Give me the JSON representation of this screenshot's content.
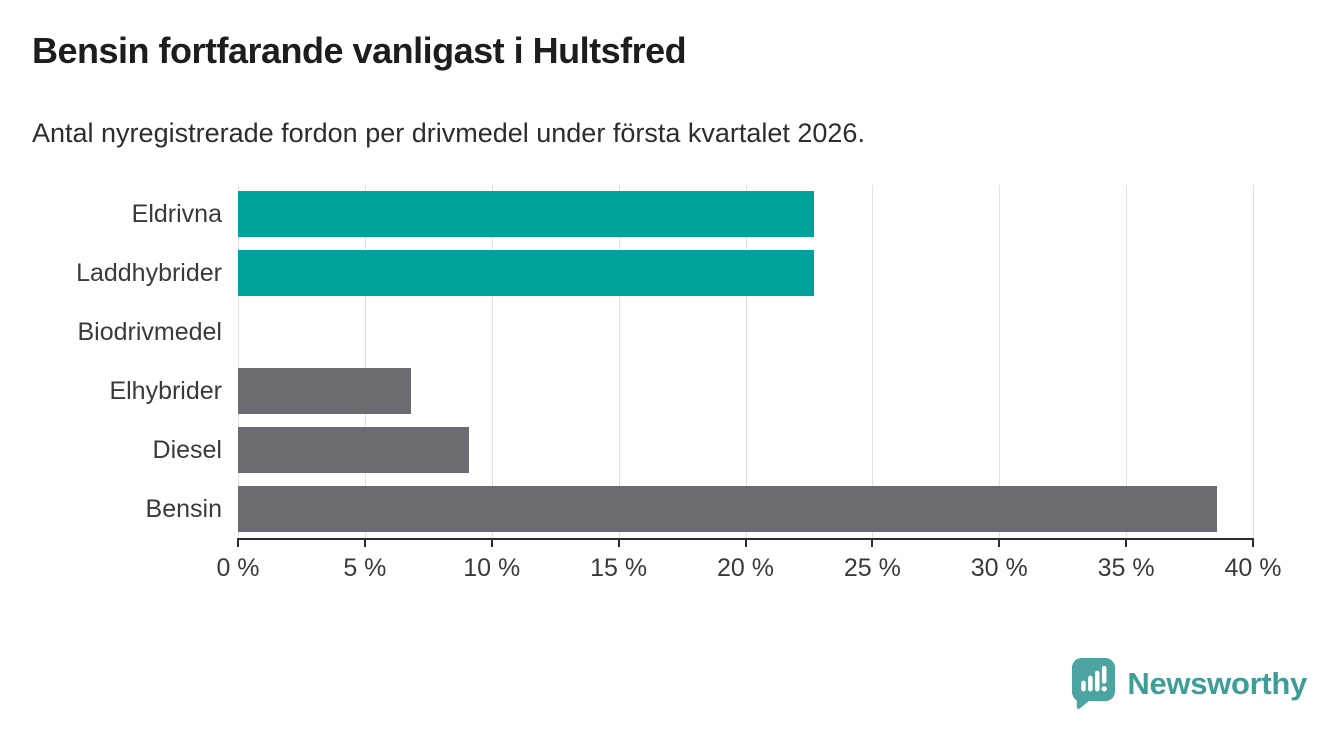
{
  "header": {
    "title": "Bensin fortfarande vanligast i Hultsfred",
    "subtitle": "Antal nyregistrerade fordon per drivmedel under första kvartalet 2026."
  },
  "chart_data": {
    "type": "bar",
    "orientation": "horizontal",
    "title": "Bensin fortfarande vanligast i Hultsfred",
    "subtitle": "Antal nyregistrerade fordon per drivmedel under första kvartalet 2026.",
    "categories": [
      "Eldrivna",
      "Laddhybrider",
      "Biodrivmedel",
      "Elhybrider",
      "Diesel",
      "Bensin"
    ],
    "values": [
      22.7,
      22.7,
      0,
      6.8,
      9.1,
      38.6
    ],
    "unit": "%",
    "xlim": [
      0,
      40
    ],
    "x_ticks": [
      0,
      5,
      10,
      15,
      20,
      25,
      30,
      35,
      40
    ],
    "x_tick_labels": [
      "0 %",
      "5 %",
      "10 %",
      "15 %",
      "20 %",
      "25 %",
      "30 %",
      "35 %",
      "40 %"
    ],
    "bar_colors": [
      "#00a29a",
      "#00a29a",
      "#6b6b72",
      "#6b6b72",
      "#6b6b72",
      "#6b6b72"
    ],
    "grid": "vertical",
    "legend": "none",
    "colors": {
      "highlight": "#00a29a",
      "default": "#6b6b72",
      "gridline": "#e2e2e2",
      "axis": "#2d2d2d",
      "tick_label": "#3a3a3a",
      "title": "#1d1d1d"
    }
  },
  "footer": {
    "brand": {
      "name": "Newsworthy",
      "wordmark_color": "#3f9d98",
      "icon": "newsworthy-speech-bubble-chart-icon",
      "icon_color": "#4ba49f"
    }
  }
}
